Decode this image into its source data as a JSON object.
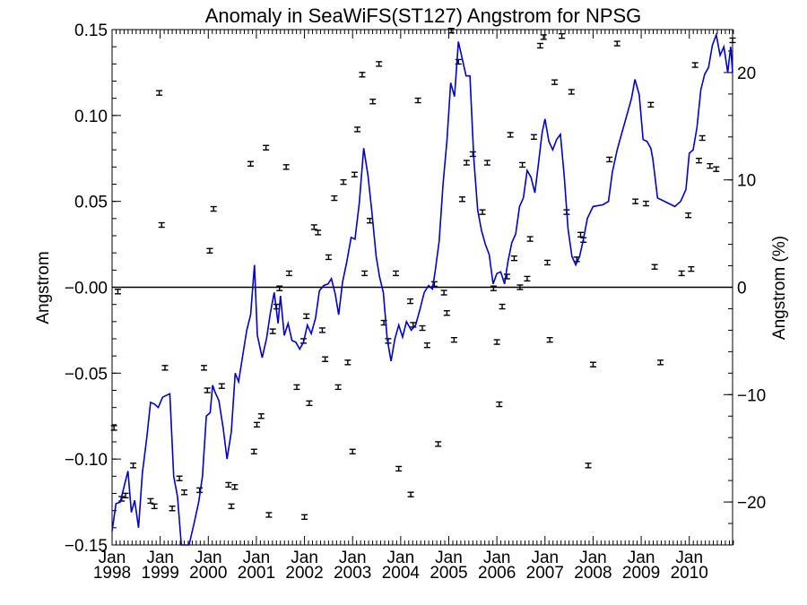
{
  "chart_data": {
    "type": "line",
    "title": "Anomaly in SeaWiFS(ST127) Angstrom for NPSG",
    "xlabel": "",
    "ylabel": "Angstrom",
    "y2label": "Angstrom (%)",
    "xlim": [
      1998.0,
      2010.9
    ],
    "ylim": [
      -0.15,
      0.15
    ],
    "y2lim": [
      -24,
      24
    ],
    "yticks": [
      -0.15,
      -0.1,
      -0.05,
      0.0,
      0.05,
      0.1,
      0.15
    ],
    "ytick_labels": [
      "−0.15",
      "−0.10",
      "−0.05",
      "−0.00",
      "0.05",
      "0.10",
      "0.15"
    ],
    "y2ticks": [
      -20,
      -10,
      0,
      10,
      20
    ],
    "y2tick_labels": [
      "−20",
      "−10",
      "0",
      "10",
      "20"
    ],
    "xticks": [
      {
        "x": 1998.0,
        "month": "Jan",
        "year": "1998"
      },
      {
        "x": 1999.0,
        "month": "Jan",
        "year": "1999"
      },
      {
        "x": 2000.0,
        "month": "Jan",
        "year": "2000"
      },
      {
        "x": 2001.0,
        "month": "Jan",
        "year": "2001"
      },
      {
        "x": 2002.0,
        "month": "Jan",
        "year": "2002"
      },
      {
        "x": 2003.0,
        "month": "Jan",
        "year": "2003"
      },
      {
        "x": 2004.0,
        "month": "Jan",
        "year": "2004"
      },
      {
        "x": 2005.0,
        "month": "Jan",
        "year": "2005"
      },
      {
        "x": 2006.0,
        "month": "Jan",
        "year": "2006"
      },
      {
        "x": 2007.0,
        "month": "Jan",
        "year": "2007"
      },
      {
        "x": 2008.0,
        "month": "Jan",
        "year": "2008"
      },
      {
        "x": 2009.0,
        "month": "Jan",
        "year": "2009"
      },
      {
        "x": 2010.0,
        "month": "Jan",
        "year": "2010"
      }
    ],
    "grid": false,
    "zero_line": 0.0,
    "series": [
      {
        "color": "#0000cc",
        "axis": "left",
        "points": [
          [
            1998.0,
            -0.142
          ],
          [
            1998.08,
            -0.126
          ],
          [
            1998.17,
            -0.125
          ],
          [
            1998.25,
            -0.116
          ],
          [
            1998.33,
            -0.107
          ],
          [
            1998.4,
            -0.131
          ],
          [
            1998.47,
            -0.124
          ],
          [
            1998.55,
            -0.14
          ],
          [
            1998.63,
            -0.108
          ],
          [
            1998.72,
            -0.088
          ],
          [
            1998.8,
            -0.067
          ],
          [
            1998.88,
            -0.068
          ],
          [
            1998.96,
            -0.07
          ],
          [
            1999.05,
            -0.064
          ],
          [
            1999.12,
            -0.063
          ],
          [
            1999.2,
            -0.062
          ],
          [
            1999.28,
            -0.11
          ],
          [
            1999.36,
            -0.122
          ],
          [
            1999.44,
            -0.15
          ],
          [
            1999.6,
            -0.15
          ],
          [
            1999.7,
            -0.138
          ],
          [
            1999.8,
            -0.125
          ],
          [
            1999.88,
            -0.11
          ],
          [
            1999.96,
            -0.075
          ],
          [
            2000.04,
            -0.073
          ],
          [
            2000.09,
            -0.057
          ],
          [
            2000.14,
            -0.061
          ],
          [
            2000.22,
            -0.066
          ],
          [
            2000.31,
            -0.082
          ],
          [
            2000.39,
            -0.1
          ],
          [
            2000.48,
            -0.084
          ],
          [
            2000.56,
            -0.05
          ],
          [
            2000.63,
            -0.055
          ],
          [
            2000.72,
            -0.039
          ],
          [
            2000.8,
            -0.025
          ],
          [
            2000.88,
            -0.016
          ],
          [
            2000.96,
            0.013
          ],
          [
            2001.02,
            -0.028
          ],
          [
            2001.12,
            -0.041
          ],
          [
            2001.21,
            -0.03
          ],
          [
            2001.29,
            -0.015
          ],
          [
            2001.37,
            -0.003
          ],
          [
            2001.45,
            -0.021
          ],
          [
            2001.5,
            -0.005
          ],
          [
            2001.58,
            -0.028
          ],
          [
            2001.66,
            -0.021
          ],
          [
            2001.74,
            -0.031
          ],
          [
            2001.82,
            -0.032
          ],
          [
            2001.9,
            -0.036
          ],
          [
            2001.98,
            -0.032
          ],
          [
            2002.06,
            -0.022
          ],
          [
            2002.14,
            -0.027
          ],
          [
            2002.23,
            -0.018
          ],
          [
            2002.31,
            -0.002
          ],
          [
            2002.4,
            0.001
          ],
          [
            2002.49,
            0.002
          ],
          [
            2002.56,
            0.005
          ],
          [
            2002.64,
            -0.004
          ],
          [
            2002.71,
            -0.016
          ],
          [
            2002.79,
            0.003
          ],
          [
            2002.88,
            0.015
          ],
          [
            2002.97,
            0.029
          ],
          [
            2003.05,
            0.028
          ],
          [
            2003.14,
            0.049
          ],
          [
            2003.23,
            0.081
          ],
          [
            2003.32,
            0.065
          ],
          [
            2003.4,
            0.044
          ],
          [
            2003.49,
            0.018
          ],
          [
            2003.56,
            0.006
          ],
          [
            2003.64,
            -0.003
          ],
          [
            2003.72,
            -0.03
          ],
          [
            2003.8,
            -0.043
          ],
          [
            2003.88,
            -0.03
          ],
          [
            2003.96,
            -0.022
          ],
          [
            2004.04,
            -0.029
          ],
          [
            2004.12,
            -0.02
          ],
          [
            2004.22,
            -0.025
          ],
          [
            2004.31,
            -0.022
          ],
          [
            2004.4,
            -0.013
          ],
          [
            2004.49,
            -0.003
          ],
          [
            2004.58,
            0.001
          ],
          [
            2004.66,
            -0.001
          ],
          [
            2004.72,
            0.01
          ],
          [
            2004.8,
            0.027
          ],
          [
            2004.88,
            0.06
          ],
          [
            2004.96,
            0.085
          ],
          [
            2005.04,
            0.119
          ],
          [
            2005.12,
            0.111
          ],
          [
            2005.2,
            0.143
          ],
          [
            2005.28,
            0.133
          ],
          [
            2005.36,
            0.123
          ],
          [
            2005.44,
            0.123
          ],
          [
            2005.52,
            0.075
          ],
          [
            2005.6,
            0.045
          ],
          [
            2005.68,
            0.033
          ],
          [
            2005.76,
            0.025
          ],
          [
            2005.84,
            0.019
          ],
          [
            2005.92,
            0.002
          ],
          [
            2006.0,
            0.008
          ],
          [
            2006.08,
            0.009
          ],
          [
            2006.16,
            0.002
          ],
          [
            2006.23,
            0.015
          ],
          [
            2006.31,
            0.026
          ],
          [
            2006.39,
            0.031
          ],
          [
            2006.47,
            0.047
          ],
          [
            2006.55,
            0.052
          ],
          [
            2006.63,
            0.068
          ],
          [
            2006.71,
            0.064
          ],
          [
            2006.79,
            0.055
          ],
          [
            2006.86,
            0.071
          ],
          [
            2006.94,
            0.09
          ],
          [
            2007.0,
            0.098
          ],
          [
            2007.08,
            0.085
          ],
          [
            2007.16,
            0.08
          ],
          [
            2007.24,
            0.086
          ],
          [
            2007.32,
            0.089
          ],
          [
            2007.4,
            0.065
          ],
          [
            2007.48,
            0.034
          ],
          [
            2007.56,
            0.018
          ],
          [
            2007.64,
            0.013
          ],
          [
            2007.72,
            0.018
          ],
          [
            2007.8,
            0.028
          ],
          [
            2007.88,
            0.04
          ],
          [
            2008.0,
            0.047
          ],
          [
            2008.2,
            0.048
          ],
          [
            2008.32,
            0.05
          ],
          [
            2008.4,
            0.067
          ],
          [
            2008.5,
            0.08
          ],
          [
            2008.6,
            0.09
          ],
          [
            2008.7,
            0.1
          ],
          [
            2008.8,
            0.11
          ],
          [
            2008.87,
            0.121
          ],
          [
            2008.96,
            0.112
          ],
          [
            2009.04,
            0.086
          ],
          [
            2009.12,
            0.085
          ],
          [
            2009.2,
            0.081
          ],
          [
            2009.24,
            0.075
          ],
          [
            2009.34,
            0.052
          ],
          [
            2009.7,
            0.047
          ],
          [
            2009.82,
            0.05
          ],
          [
            2009.93,
            0.057
          ],
          [
            2010.0,
            0.078
          ],
          [
            2010.08,
            0.08
          ],
          [
            2010.16,
            0.093
          ],
          [
            2010.24,
            0.115
          ],
          [
            2010.32,
            0.124
          ],
          [
            2010.4,
            0.128
          ],
          [
            2010.48,
            0.141
          ],
          [
            2010.56,
            0.147
          ],
          [
            2010.64,
            0.135
          ],
          [
            2010.72,
            0.14
          ],
          [
            2010.8,
            0.125
          ],
          [
            2010.86,
            0.14
          ],
          [
            2010.9,
            0.125
          ]
        ]
      },
      {
        "color": "#000000",
        "axis": "right",
        "marker": "errorbar",
        "points": [
          [
            1998.04,
            -13.1
          ],
          [
            1998.12,
            -0.4
          ],
          [
            1998.2,
            -19.7
          ],
          [
            1998.28,
            -19.4
          ],
          [
            1998.44,
            -16.6
          ],
          [
            1998.8,
            -19.9
          ],
          [
            1998.88,
            -20.4
          ],
          [
            1998.98,
            18.1
          ],
          [
            1999.03,
            5.8
          ],
          [
            1999.1,
            -7.5
          ],
          [
            1999.25,
            -20.6
          ],
          [
            1999.4,
            -17.8
          ],
          [
            1999.5,
            -19.1
          ],
          [
            1999.82,
            -18.9
          ],
          [
            1999.91,
            -7.5
          ],
          [
            1999.98,
            -9.6
          ],
          [
            2000.03,
            3.4
          ],
          [
            2000.11,
            7.3
          ],
          [
            2000.28,
            -9.2
          ],
          [
            2000.42,
            -18.4
          ],
          [
            2000.48,
            -20.4
          ],
          [
            2000.55,
            -18.6
          ],
          [
            2000.88,
            11.5
          ],
          [
            2000.95,
            -15.3
          ],
          [
            2001.01,
            -12.8
          ],
          [
            2001.1,
            -12.0
          ],
          [
            2001.2,
            13.0
          ],
          [
            2001.26,
            -21.2
          ],
          [
            2001.34,
            -4.1
          ],
          [
            2001.42,
            -1.8
          ],
          [
            2001.48,
            -0.1
          ],
          [
            2001.62,
            11.2
          ],
          [
            2001.68,
            1.3
          ],
          [
            2001.84,
            -9.3
          ],
          [
            2001.98,
            -5.0
          ],
          [
            2002.0,
            -21.4
          ],
          [
            2002.04,
            -2.7
          ],
          [
            2002.1,
            -10.8
          ],
          [
            2002.2,
            5.6
          ],
          [
            2002.28,
            5.1
          ],
          [
            2002.37,
            -4.0
          ],
          [
            2002.43,
            -6.7
          ],
          [
            2002.5,
            2.8
          ],
          [
            2002.62,
            8.3
          ],
          [
            2002.7,
            -9.3
          ],
          [
            2002.81,
            9.8
          ],
          [
            2002.9,
            -7.0
          ],
          [
            2003.0,
            -15.3
          ],
          [
            2003.04,
            10.5
          ],
          [
            2003.1,
            14.7
          ],
          [
            2003.2,
            19.8
          ],
          [
            2003.25,
            1.3
          ],
          [
            2003.36,
            6.2
          ],
          [
            2003.42,
            17.3
          ],
          [
            2003.55,
            20.8
          ],
          [
            2003.65,
            -3.3
          ],
          [
            2003.74,
            -5.0
          ],
          [
            2003.9,
            1.3
          ],
          [
            2003.96,
            -16.9
          ],
          [
            2004.2,
            -1.3
          ],
          [
            2004.21,
            -19.3
          ],
          [
            2004.26,
            -3.5
          ],
          [
            2004.36,
            17.4
          ],
          [
            2004.45,
            -3.8
          ],
          [
            2004.55,
            -5.4
          ],
          [
            2004.7,
            0.3
          ],
          [
            2004.78,
            -14.6
          ],
          [
            2004.9,
            -0.5
          ],
          [
            2004.96,
            -2.4
          ],
          [
            2005.05,
            23.9
          ],
          [
            2005.11,
            -4.9
          ],
          [
            2005.2,
            21.0
          ],
          [
            2005.28,
            8.2
          ],
          [
            2005.37,
            11.6
          ],
          [
            2005.5,
            12.4
          ],
          [
            2005.7,
            7.0
          ],
          [
            2005.8,
            11.6
          ],
          [
            2005.93,
            -0.1
          ],
          [
            2006.0,
            -5.1
          ],
          [
            2006.05,
            -10.9
          ],
          [
            2006.11,
            -1.8
          ],
          [
            2006.21,
            1.0
          ],
          [
            2006.28,
            14.2
          ],
          [
            2006.36,
            2.7
          ],
          [
            2006.48,
            0.0
          ],
          [
            2006.53,
            11.4
          ],
          [
            2006.63,
            0.8
          ],
          [
            2006.69,
            4.5
          ],
          [
            2006.77,
            14.0
          ],
          [
            2006.9,
            22.5
          ],
          [
            2006.97,
            23.3
          ],
          [
            2007.05,
            2.3
          ],
          [
            2007.1,
            -4.9
          ],
          [
            2007.2,
            19.1
          ],
          [
            2007.35,
            23.4
          ],
          [
            2007.45,
            7.0
          ],
          [
            2007.55,
            18.2
          ],
          [
            2007.66,
            2.6
          ],
          [
            2007.74,
            4.9
          ],
          [
            2007.8,
            4.4
          ],
          [
            2007.9,
            -16.6
          ],
          [
            2008.0,
            -7.2
          ],
          [
            2008.34,
            11.9
          ],
          [
            2008.5,
            22.7
          ],
          [
            2008.88,
            8.0
          ],
          [
            2009.1,
            7.8
          ],
          [
            2009.2,
            17.0
          ],
          [
            2009.28,
            1.9
          ],
          [
            2009.4,
            -7.0
          ],
          [
            2009.84,
            1.3
          ],
          [
            2009.98,
            6.7
          ],
          [
            2010.04,
            1.7
          ],
          [
            2010.12,
            20.7
          ],
          [
            2010.2,
            11.8
          ],
          [
            2010.27,
            13.9
          ],
          [
            2010.43,
            11.3
          ],
          [
            2010.56,
            11.0
          ],
          [
            2010.9,
            23.0
          ]
        ]
      }
    ]
  }
}
